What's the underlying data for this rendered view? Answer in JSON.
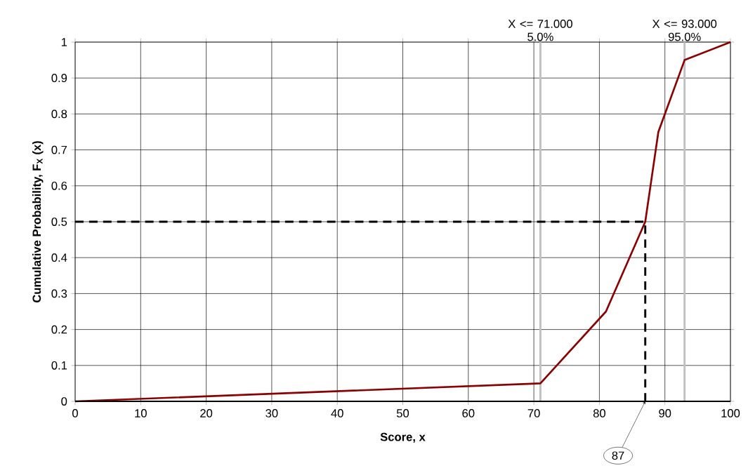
{
  "chart_data": {
    "type": "line",
    "xlabel": "**Score, x**",
    "ylabel": "**Cumulative Probability, F$_{X}$ (x)**",
    "xlim": [
      0,
      100
    ],
    "ylim": [
      0,
      1
    ],
    "xticks": [
      0,
      10,
      20,
      30,
      40,
      50,
      60,
      70,
      80,
      90,
      100
    ],
    "yticks": [
      0,
      0.1,
      0.2,
      0.3,
      0.4,
      0.5,
      0.6,
      0.7,
      0.8,
      0.9,
      1
    ],
    "grid": true,
    "marker": "none",
    "series": [
      {
        "color": "#8b0000",
        "x": [
          0,
          71,
          81,
          87,
          89,
          93,
          100
        ],
        "values": [
          0,
          0.05,
          0.25,
          0.5,
          0.75,
          0.95,
          1
        ],
        "line_style": "solid"
      },
      {
        "color": "#000000",
        "x": [
          0,
          87,
          87
        ],
        "values": [
          0.5,
          0.5,
          0
        ],
        "line_style": "dashed"
      }
    ],
    "ref_lines": [
      {
        "axis": "x",
        "value": 71,
        "label": "X <= 71.000 5.0%",
        "color": "#c0c0c0"
      },
      {
        "axis": "x",
        "value": 93,
        "label": "X <= 93.000 95.0%",
        "color": "#c0c0c0"
      }
    ],
    "annotations": [
      {
        "text": "87",
        "x": 87,
        "y": 0
      }
    ]
  }
}
